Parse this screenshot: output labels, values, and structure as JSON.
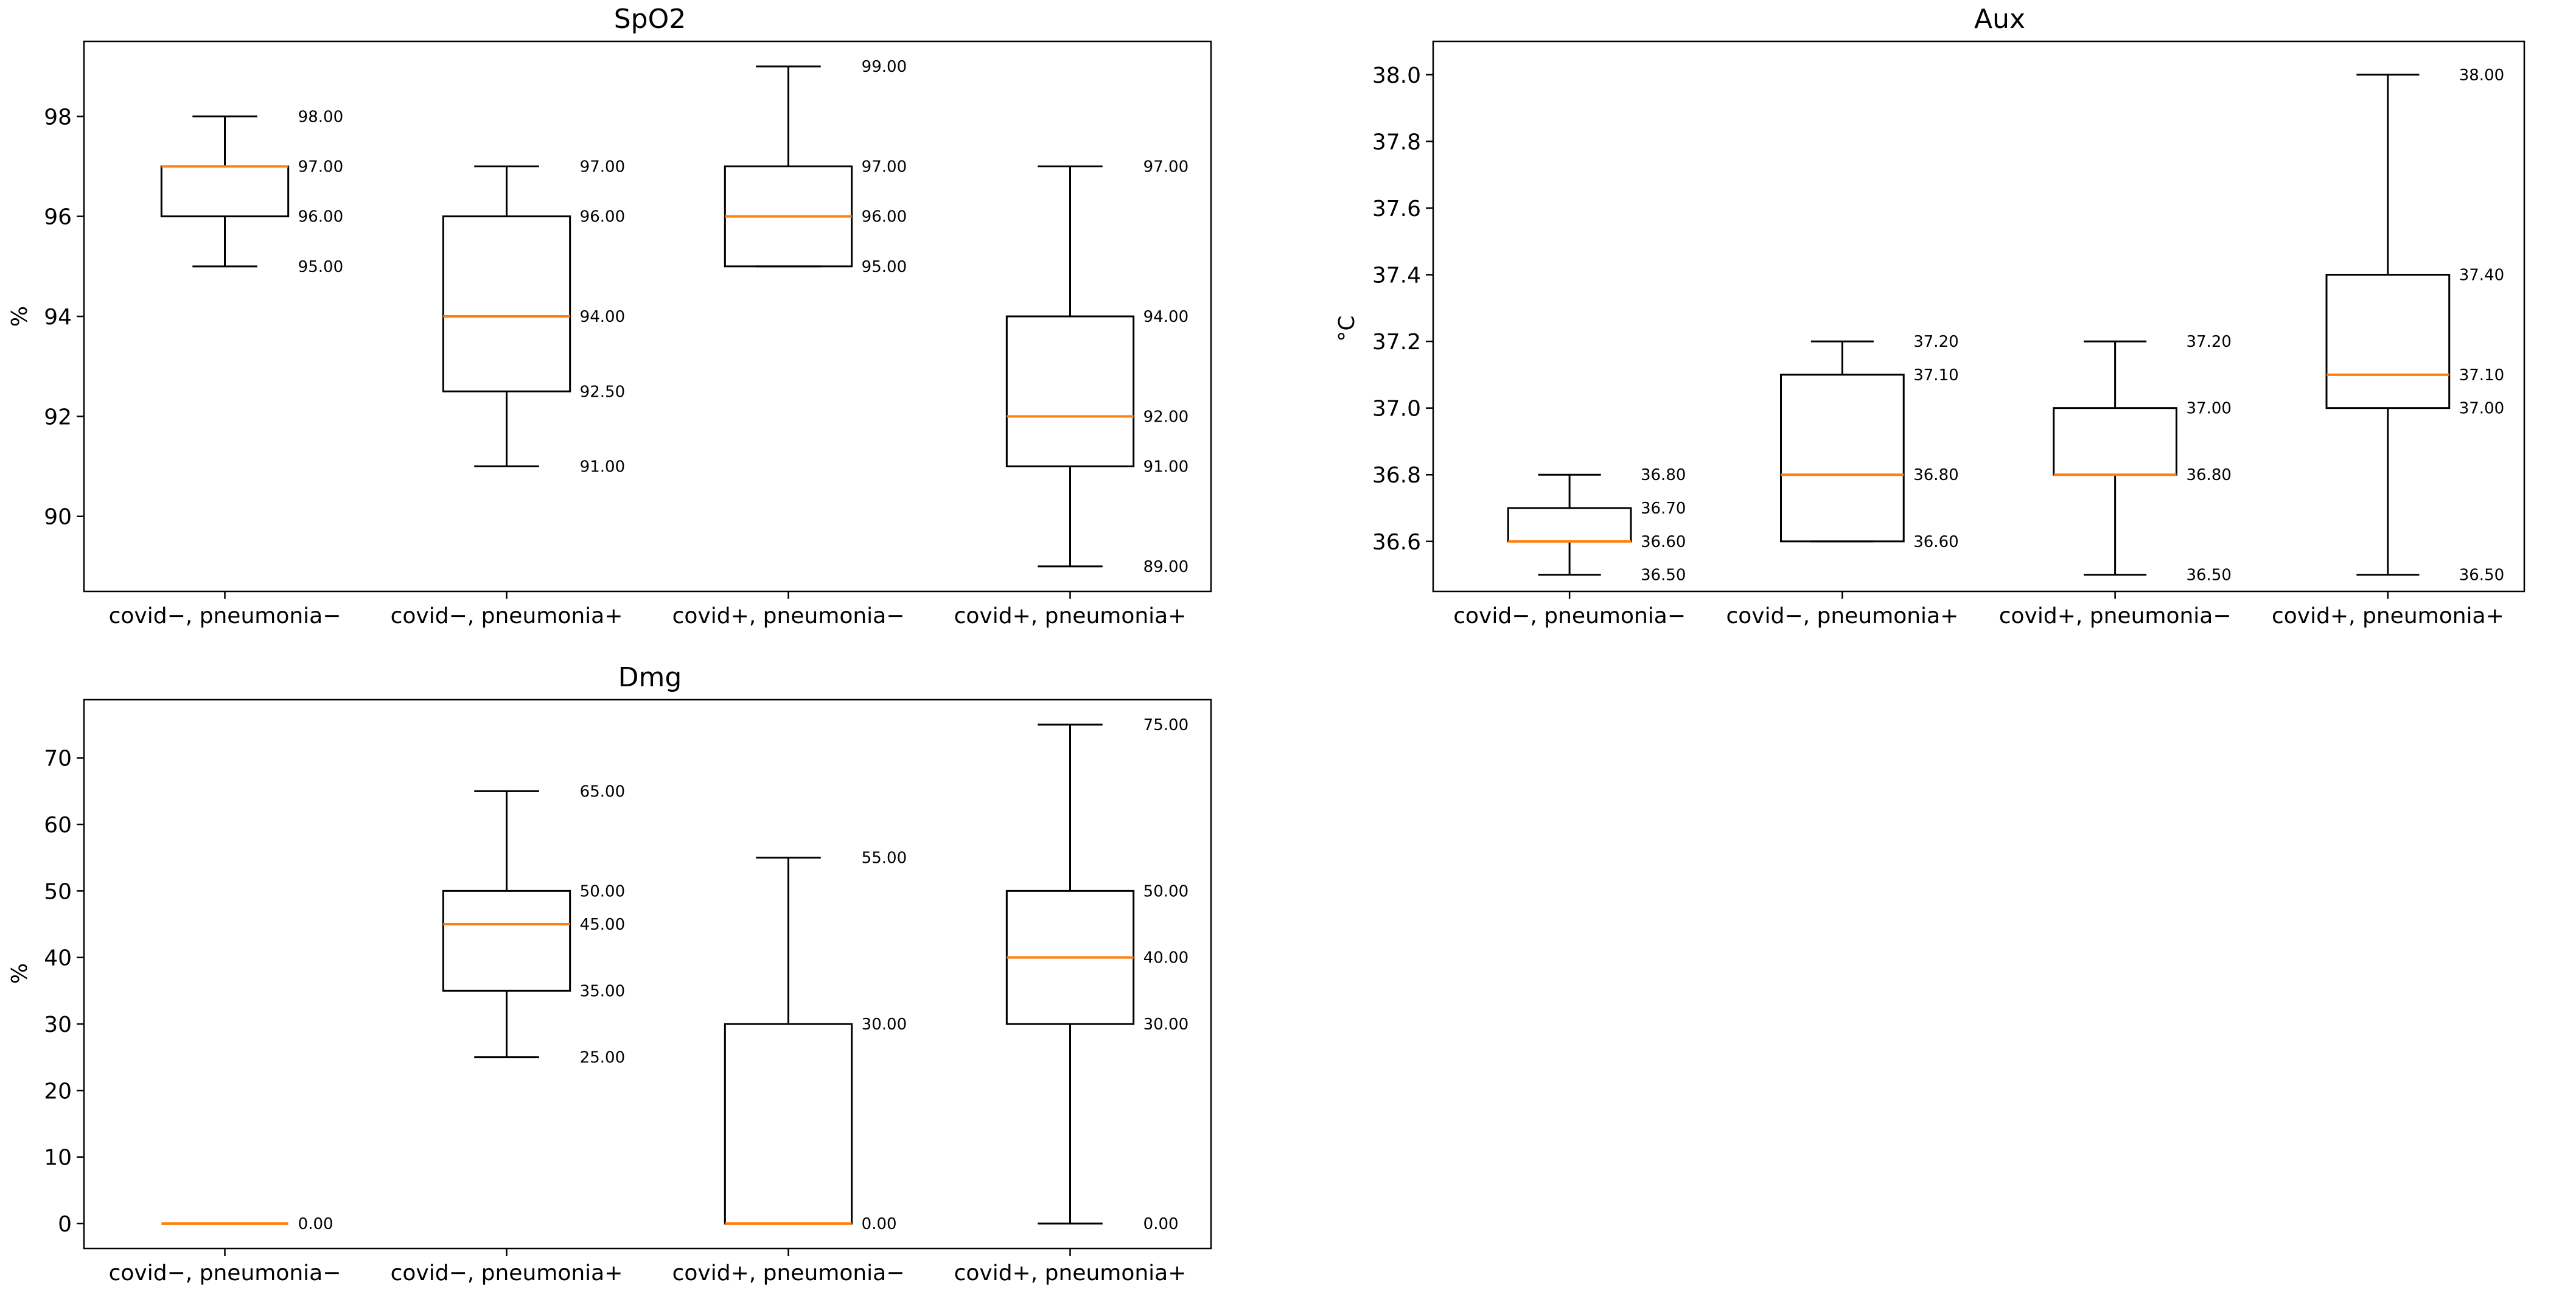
{
  "chart_data": [
    {
      "type": "box",
      "title": "SpO2",
      "ylabel": "%",
      "xlabel": "",
      "ylim": [
        88.5,
        99.5
      ],
      "yticks": [
        90,
        92,
        94,
        96,
        98
      ],
      "categories": [
        "covid−, pneumonia−",
        "covid−, pneumonia+",
        "covid+, pneumonia−",
        "covid+, pneumonia+"
      ],
      "boxes": [
        {
          "whislo": 95,
          "q1": 96,
          "med": 97,
          "q3": 97,
          "whishi": 98
        },
        {
          "whislo": 91,
          "q1": 92.5,
          "med": 94,
          "q3": 96,
          "whishi": 97
        },
        {
          "whislo": 95,
          "q1": 95,
          "med": 96,
          "q3": 97,
          "whishi": 99
        },
        {
          "whislo": 89,
          "q1": 91,
          "med": 92,
          "q3": 94,
          "whishi": 97
        }
      ],
      "annotations": [
        [
          {
            "y": 98,
            "label": "98.00"
          },
          {
            "y": 97,
            "label": "97.00"
          },
          {
            "y": 96,
            "label": "96.00"
          },
          {
            "y": 95,
            "label": "95.00"
          }
        ],
        [
          {
            "y": 97,
            "label": "97.00"
          },
          {
            "y": 96,
            "label": "96.00"
          },
          {
            "y": 94,
            "label": "94.00"
          },
          {
            "y": 92.5,
            "label": "92.50"
          },
          {
            "y": 91,
            "label": "91.00"
          }
        ],
        [
          {
            "y": 99,
            "label": "99.00"
          },
          {
            "y": 97,
            "label": "97.00"
          },
          {
            "y": 96,
            "label": "96.00"
          },
          {
            "y": 95,
            "label": "95.00"
          }
        ],
        [
          {
            "y": 97,
            "label": "97.00"
          },
          {
            "y": 94,
            "label": "94.00"
          },
          {
            "y": 92,
            "label": "92.00"
          },
          {
            "y": 91,
            "label": "91.00"
          },
          {
            "y": 89,
            "label": "89.00"
          }
        ]
      ]
    },
    {
      "type": "box",
      "title": "Aux",
      "ylabel": "°C",
      "xlabel": "",
      "ylim": [
        36.45,
        38.1
      ],
      "yticks": [
        36.6,
        36.8,
        37.0,
        37.2,
        37.4,
        37.6,
        37.8,
        38.0
      ],
      "ytick_labels": [
        "36.6",
        "36.8",
        "37.0",
        "37.2",
        "37.4",
        "37.6",
        "37.8",
        "38.0"
      ],
      "categories": [
        "covid−, pneumonia−",
        "covid−, pneumonia+",
        "covid+, pneumonia−",
        "covid+, pneumonia+"
      ],
      "boxes": [
        {
          "whislo": 36.5,
          "q1": 36.6,
          "med": 36.6,
          "q3": 36.7,
          "whishi": 36.8
        },
        {
          "whislo": 36.6,
          "q1": 36.6,
          "med": 36.8,
          "q3": 37.1,
          "whishi": 37.2
        },
        {
          "whislo": 36.5,
          "q1": 36.8,
          "med": 36.8,
          "q3": 37.0,
          "whishi": 37.2
        },
        {
          "whislo": 36.5,
          "q1": 37.0,
          "med": 37.1,
          "q3": 37.4,
          "whishi": 38.0
        }
      ],
      "annotations": [
        [
          {
            "y": 36.8,
            "label": "36.80"
          },
          {
            "y": 36.7,
            "label": "36.70"
          },
          {
            "y": 36.6,
            "label": "36.60"
          },
          {
            "y": 36.5,
            "label": "36.50"
          }
        ],
        [
          {
            "y": 37.2,
            "label": "37.20"
          },
          {
            "y": 37.1,
            "label": "37.10"
          },
          {
            "y": 36.8,
            "label": "36.80"
          },
          {
            "y": 36.6,
            "label": "36.60"
          }
        ],
        [
          {
            "y": 37.2,
            "label": "37.20"
          },
          {
            "y": 37.0,
            "label": "37.00"
          },
          {
            "y": 36.8,
            "label": "36.80"
          },
          {
            "y": 36.5,
            "label": "36.50"
          }
        ],
        [
          {
            "y": 38.0,
            "label": "38.00"
          },
          {
            "y": 37.4,
            "label": "37.40"
          },
          {
            "y": 37.1,
            "label": "37.10"
          },
          {
            "y": 37.0,
            "label": "37.00"
          },
          {
            "y": 36.5,
            "label": "36.50"
          }
        ]
      ]
    },
    {
      "type": "box",
      "title": "Dmg",
      "ylabel": "%",
      "xlabel": "",
      "ylim": [
        -3.75,
        78.75
      ],
      "yticks": [
        0,
        10,
        20,
        30,
        40,
        50,
        60,
        70
      ],
      "categories": [
        "covid−, pneumonia−",
        "covid−, pneumonia+",
        "covid+, pneumonia−",
        "covid+, pneumonia+"
      ],
      "boxes": [
        {
          "whislo": 0,
          "q1": 0,
          "med": 0,
          "q3": 0,
          "whishi": 0
        },
        {
          "whislo": 25,
          "q1": 35,
          "med": 45,
          "q3": 50,
          "whishi": 65
        },
        {
          "whislo": 0,
          "q1": 0,
          "med": 0,
          "q3": 30,
          "whishi": 55
        },
        {
          "whislo": 0,
          "q1": 30,
          "med": 40,
          "q3": 50,
          "whishi": 75
        }
      ],
      "annotations": [
        [
          {
            "y": 0,
            "label": "0.00"
          }
        ],
        [
          {
            "y": 65,
            "label": "65.00"
          },
          {
            "y": 50,
            "label": "50.00"
          },
          {
            "y": 45,
            "label": "45.00"
          },
          {
            "y": 35,
            "label": "35.00"
          },
          {
            "y": 25,
            "label": "25.00"
          }
        ],
        [
          {
            "y": 55,
            "label": "55.00"
          },
          {
            "y": 30,
            "label": "30.00"
          },
          {
            "y": 0,
            "label": "0.00"
          }
        ],
        [
          {
            "y": 75,
            "label": "75.00"
          },
          {
            "y": 50,
            "label": "50.00"
          },
          {
            "y": 40,
            "label": "40.00"
          },
          {
            "y": 30,
            "label": "30.00"
          },
          {
            "y": 0,
            "label": "0.00"
          }
        ]
      ]
    }
  ]
}
